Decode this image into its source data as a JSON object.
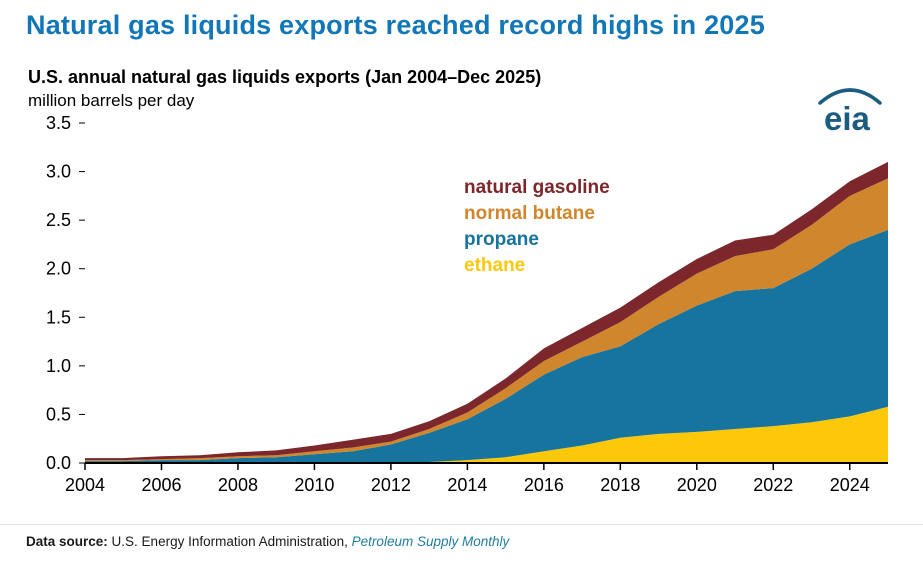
{
  "page_title": "Natural gas liquids exports reached record highs in 2025",
  "chart": {
    "title": "U.S. annual natural gas liquids exports (Jan 2004–Dec 2025)",
    "units": "million barrels per day",
    "legend": [
      {
        "label": "natural gasoline",
        "color": "#7b272b"
      },
      {
        "label": "normal butane",
        "color": "#d0862c"
      },
      {
        "label": "propane",
        "color": "#16749f"
      },
      {
        "label": "ethane",
        "color": "#fec80a"
      }
    ]
  },
  "logo": {
    "text": "eia"
  },
  "footer": {
    "label": "Data source:",
    "text": "U.S. Energy Information Administration,",
    "publication": "Petroleum Supply Monthly"
  },
  "chart_data": {
    "type": "area",
    "stacked": true,
    "title": "U.S. annual natural gas liquids exports (Jan 2004–Dec 2025)",
    "ylabel": "million barrels per day",
    "ylim": [
      0,
      3.5
    ],
    "yticks": [
      0.0,
      0.5,
      1.0,
      1.5,
      2.0,
      2.5,
      3.0,
      3.5
    ],
    "xticks": [
      2004,
      2006,
      2008,
      2010,
      2012,
      2014,
      2016,
      2018,
      2020,
      2022,
      2024
    ],
    "x": [
      2004,
      2005,
      2006,
      2007,
      2008,
      2009,
      2010,
      2011,
      2012,
      2013,
      2014,
      2015,
      2016,
      2017,
      2018,
      2019,
      2020,
      2021,
      2022,
      2023,
      2024,
      2025
    ],
    "series": [
      {
        "name": "ethane",
        "color": "#fec80a",
        "values": [
          0,
          0,
          0,
          0,
          0,
          0,
          0,
          0,
          0,
          0.01,
          0.03,
          0.06,
          0.12,
          0.18,
          0.26,
          0.3,
          0.32,
          0.35,
          0.38,
          0.42,
          0.48,
          0.58
        ]
      },
      {
        "name": "propane",
        "color": "#16749f",
        "values": [
          0.02,
          0.02,
          0.03,
          0.03,
          0.05,
          0.06,
          0.09,
          0.12,
          0.19,
          0.3,
          0.42,
          0.6,
          0.79,
          0.91,
          0.94,
          1.13,
          1.3,
          1.42,
          1.42,
          1.58,
          1.77,
          1.82
        ]
      },
      {
        "name": "normal butane",
        "color": "#d0862c",
        "values": [
          0.01,
          0.01,
          0.01,
          0.02,
          0.02,
          0.02,
          0.03,
          0.04,
          0.03,
          0.04,
          0.07,
          0.11,
          0.14,
          0.16,
          0.25,
          0.28,
          0.33,
          0.36,
          0.4,
          0.45,
          0.5,
          0.53
        ]
      },
      {
        "name": "natural gasoline",
        "color": "#7b272b",
        "values": [
          0.02,
          0.02,
          0.03,
          0.03,
          0.04,
          0.05,
          0.06,
          0.08,
          0.08,
          0.08,
          0.09,
          0.1,
          0.13,
          0.14,
          0.15,
          0.15,
          0.15,
          0.16,
          0.15,
          0.16,
          0.15,
          0.17
        ]
      }
    ],
    "legend_position": "inside-top-middle",
    "grid": false
  }
}
